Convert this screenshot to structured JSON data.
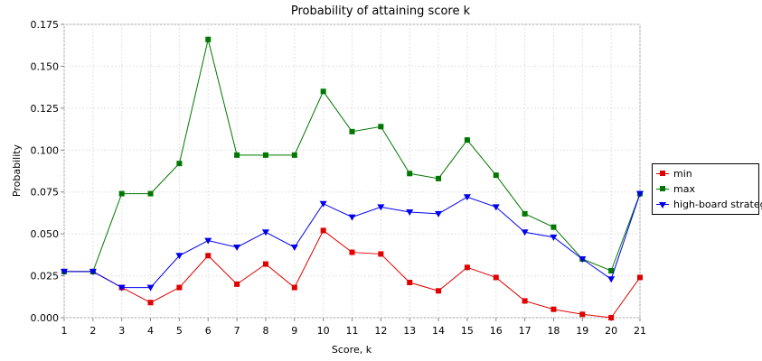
{
  "chart_data": {
    "type": "line",
    "title": "Probability of attaining score k",
    "xlabel": "Score, k",
    "ylabel": "Probability",
    "x": [
      1,
      2,
      3,
      4,
      5,
      6,
      7,
      8,
      9,
      10,
      11,
      12,
      13,
      14,
      15,
      16,
      17,
      18,
      19,
      20,
      21
    ],
    "xlim": [
      1,
      21
    ],
    "ylim": [
      0,
      0.175
    ],
    "x_ticks": [
      "1",
      "2",
      "3",
      "4",
      "5",
      "6",
      "7",
      "8",
      "9",
      "10",
      "11",
      "12",
      "13",
      "14",
      "15",
      "16",
      "17",
      "18",
      "19",
      "20",
      "21"
    ],
    "y_ticks": [
      "0.000",
      "0.025",
      "0.050",
      "0.075",
      "0.100",
      "0.125",
      "0.150",
      "0.175"
    ],
    "grid": true,
    "legend_position": "right",
    "series": [
      {
        "name": "min",
        "color": "#e00000",
        "marker": "square",
        "values": [
          0.0275,
          0.0275,
          0.018,
          0.009,
          0.018,
          0.037,
          0.02,
          0.032,
          0.018,
          0.052,
          0.039,
          0.038,
          0.021,
          0.016,
          0.03,
          0.024,
          0.01,
          0.005,
          0.002,
          0.0,
          0.024
        ]
      },
      {
        "name": "max",
        "color": "#007700",
        "marker": "square",
        "values": [
          0.0275,
          0.0275,
          0.074,
          0.074,
          0.092,
          0.166,
          0.097,
          0.097,
          0.097,
          0.135,
          0.111,
          0.114,
          0.086,
          0.083,
          0.106,
          0.085,
          0.062,
          0.054,
          0.035,
          0.028,
          0.074
        ]
      },
      {
        "name": "high-board strategy",
        "color": "#0000ee",
        "marker": "triangle-down",
        "values": [
          0.0275,
          0.0275,
          0.018,
          0.018,
          0.037,
          0.046,
          0.042,
          0.051,
          0.042,
          0.068,
          0.06,
          0.066,
          0.063,
          0.062,
          0.072,
          0.066,
          0.051,
          0.048,
          0.035,
          0.023,
          0.074
        ]
      }
    ]
  }
}
